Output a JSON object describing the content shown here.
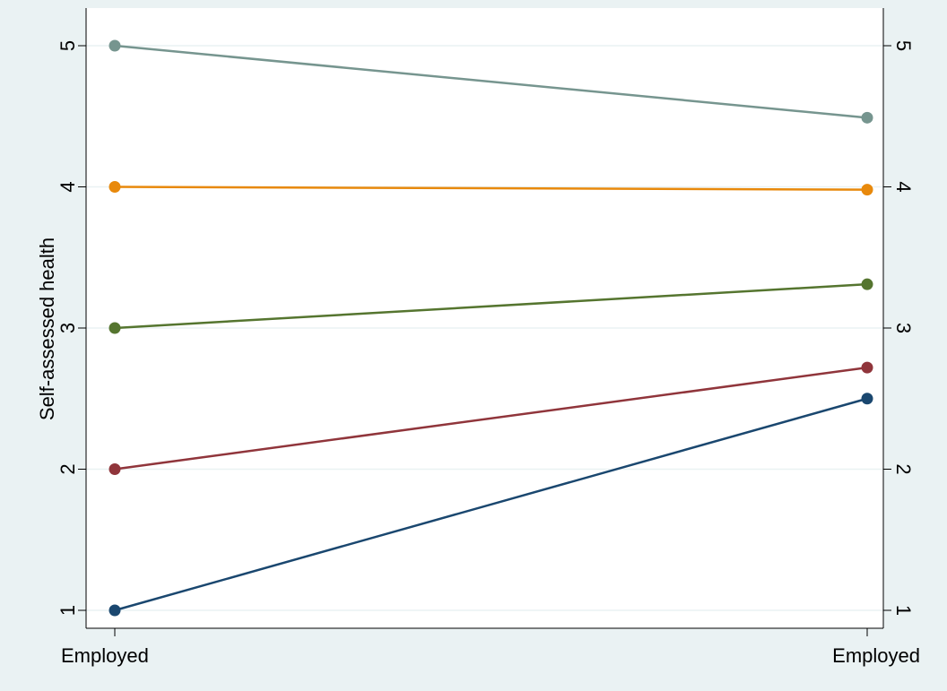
{
  "chart_data": {
    "type": "line",
    "title": "",
    "xlabel": "",
    "ylabel": "Self-assessed health",
    "categories": [
      "Employed",
      "Employed"
    ],
    "ylim": [
      1,
      5
    ],
    "yticks": [
      1,
      2,
      3,
      4,
      5
    ],
    "grid": true,
    "secondary_y_axis": true,
    "series": [
      {
        "values": [
          5,
          4.49
        ],
        "color": "#76958f"
      },
      {
        "values": [
          4,
          3.98
        ],
        "color": "#e8890c"
      },
      {
        "values": [
          3,
          3.31
        ],
        "color": "#55752f"
      },
      {
        "values": [
          2,
          2.72
        ],
        "color": "#90353b"
      },
      {
        "values": [
          1,
          2.5
        ],
        "color": "#1a476f"
      }
    ]
  },
  "colors": {
    "background": "#eaf2f3",
    "plot_background": "#ffffff",
    "grid": "#eaf2f3"
  }
}
